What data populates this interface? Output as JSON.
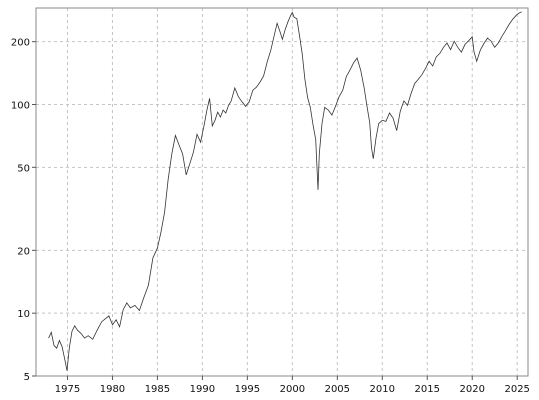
{
  "chart_data": {
    "type": "line",
    "title": "",
    "xlabel": "",
    "ylabel": "",
    "y_scale": "log",
    "xlim": [
      1971.5,
      2026.2
    ],
    "ylim": [
      5,
      290
    ],
    "x_ticks": [
      1975,
      1980,
      1985,
      1990,
      1995,
      2000,
      2005,
      2010,
      2015,
      2020,
      2025
    ],
    "y_ticks": [
      5,
      10,
      20,
      50,
      100,
      200
    ],
    "grid": true,
    "legend": "none",
    "series": [
      {
        "color": "#333333",
        "x": [
          1972.9,
          1973.2,
          1973.5,
          1973.8,
          1974.1,
          1974.4,
          1974.7,
          1974.95,
          1975.2,
          1975.5,
          1975.8,
          1976.1,
          1976.5,
          1976.9,
          1977.3,
          1977.8,
          1978.3,
          1978.8,
          1979.2,
          1979.6,
          1980.0,
          1980.4,
          1980.8,
          1981.2,
          1981.6,
          1982.0,
          1982.5,
          1983.0,
          1983.5,
          1984.0,
          1984.5,
          1985.0,
          1985.4,
          1985.8,
          1986.2,
          1986.6,
          1987.0,
          1987.4,
          1987.8,
          1988.2,
          1988.6,
          1989.0,
          1989.4,
          1989.8,
          1990.2,
          1990.5,
          1990.8,
          1991.1,
          1991.4,
          1991.7,
          1992.0,
          1992.3,
          1992.6,
          1992.9,
          1993.2,
          1993.6,
          1994.0,
          1994.4,
          1994.8,
          1995.2,
          1995.6,
          1996.0,
          1996.4,
          1996.8,
          1997.2,
          1997.6,
          1998.0,
          1998.3,
          1998.6,
          1998.9,
          1999.2,
          1999.5,
          1999.8,
          2000.0,
          2000.2,
          2000.5,
          2000.8,
          2001.1,
          2001.4,
          2001.7,
          2002.0,
          2002.3,
          2002.6,
          2002.85,
          2003.0,
          2003.3,
          2003.6,
          2004.0,
          2004.4,
          2004.8,
          2005.2,
          2005.6,
          2006.0,
          2006.4,
          2006.8,
          2007.2,
          2007.6,
          2008.0,
          2008.3,
          2008.6,
          2008.8,
          2009.0,
          2009.3,
          2009.6,
          2010.0,
          2010.4,
          2010.8,
          2011.2,
          2011.6,
          2012.0,
          2012.4,
          2012.8,
          2013.2,
          2013.6,
          2014.0,
          2014.4,
          2014.8,
          2015.2,
          2015.6,
          2016.0,
          2016.4,
          2016.8,
          2017.2,
          2017.6,
          2018.0,
          2018.4,
          2018.8,
          2019.2,
          2019.6,
          2020.0,
          2020.2,
          2020.5,
          2020.9,
          2021.3,
          2021.7,
          2022.1,
          2022.5,
          2022.9,
          2023.3,
          2023.7,
          2024.1,
          2024.5,
          2024.9,
          2025.2,
          2025.5
        ],
        "y": [
          7.6,
          8.1,
          7.0,
          6.8,
          7.4,
          6.9,
          6.0,
          5.3,
          6.8,
          8.2,
          8.7,
          8.3,
          8.0,
          7.6,
          7.8,
          7.5,
          8.3,
          9.1,
          9.4,
          9.7,
          8.8,
          9.3,
          8.6,
          10.4,
          11.2,
          10.6,
          10.9,
          10.3,
          11.9,
          13.6,
          18.4,
          20.5,
          24.5,
          30.5,
          44.0,
          58.0,
          71.0,
          64.0,
          58.0,
          46.0,
          52.0,
          59.0,
          72.0,
          66.0,
          80.0,
          94.0,
          107.0,
          79.0,
          84.0,
          92.0,
          87.0,
          94.0,
          91.0,
          99.0,
          104.0,
          120.0,
          109.0,
          103.0,
          98.0,
          103.0,
          117.0,
          121.0,
          128.0,
          137.0,
          160.0,
          182.0,
          216.0,
          245.0,
          225.0,
          205.0,
          228.0,
          248.0,
          266.0,
          276.0,
          262.0,
          258.0,
          214.0,
          175.0,
          132.0,
          108.0,
          97.0,
          80.0,
          68.0,
          39.0,
          58.0,
          81.0,
          97.0,
          94.0,
          89.0,
          98.0,
          109.0,
          117.0,
          136.0,
          146.0,
          158.0,
          167.0,
          146.0,
          119.0,
          98.0,
          82.0,
          62.0,
          55.0,
          69.0,
          81.0,
          84.0,
          83.0,
          91.0,
          86.0,
          75.0,
          93.0,
          104.0,
          99.0,
          113.0,
          126.0,
          132.0,
          139.0,
          149.0,
          161.0,
          153.0,
          169.0,
          176.0,
          188.0,
          197.0,
          183.0,
          201.0,
          188.0,
          178.0,
          194.0,
          202.0,
          211.0,
          179.0,
          161.0,
          182.0,
          196.0,
          208.0,
          201.0,
          188.0,
          197.0,
          212.0,
          226.0,
          242.0,
          256.0,
          268.0,
          274.0,
          278.0
        ]
      }
    ]
  }
}
